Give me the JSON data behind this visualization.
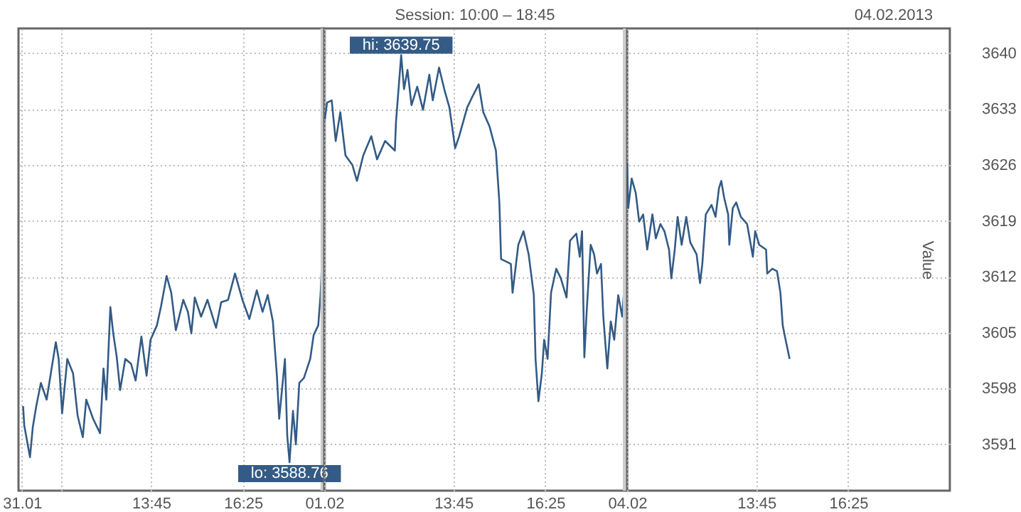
{
  "chart_data": [
    {
      "type": "line",
      "xlim": [
        "2013-01-31T09:54",
        "2013-01-31T18:45"
      ],
      "xticks": [
        {
          "value": "2013-01-31T10:00",
          "label": "31.01"
        },
        {
          "value": "2013-01-31T11:08",
          "label": null
        },
        {
          "value": "2013-01-31T13:45",
          "label": "13:45"
        },
        {
          "value": "2013-01-31T16:25",
          "label": "16:25"
        }
      ],
      "ylim": [
        3585.2,
        3643.1
      ],
      "yticks": [
        3591,
        3598,
        3605,
        3612,
        3619,
        3626,
        3633,
        3640
      ],
      "tick_labels": "x",
      "grid": true,
      "annotations": [
        {
          "text": "lo: 3588.76",
          "x": "2013-01-31T17:46",
          "y": 3588.76
        }
      ],
      "ref_lines": [
        {
          "axis": "x",
          "value": "2013-01-31T18:45",
          "label": null,
          "color": "#cccccc"
        }
      ],
      "series": [
        {
          "color": "#335b85",
          "x": [
            "2013-01-31T10:02",
            "2013-01-31T10:04",
            "2013-01-31T10:14",
            "2013-01-31T10:19",
            "2013-01-31T10:25",
            "2013-01-31T10:33",
            "2013-01-31T10:43",
            "2013-01-31T10:53",
            "2013-01-31T10:59",
            "2013-01-31T11:04",
            "2013-01-31T11:10",
            "2013-01-31T11:19",
            "2013-01-31T11:29",
            "2013-01-31T11:37",
            "2013-01-31T11:46",
            "2013-01-31T11:52",
            "2013-01-31T12:04",
            "2013-01-31T12:16",
            "2013-01-31T12:22",
            "2013-01-31T12:27",
            "2013-01-31T12:34",
            "2013-01-31T12:39",
            "2013-01-31T12:45",
            "2013-01-31T12:51",
            "2013-01-31T13:00",
            "2013-01-31T13:10",
            "2013-01-31T13:18",
            "2013-01-31T13:28",
            "2013-01-31T13:37",
            "2013-01-31T13:44",
            "2013-01-31T13:55",
            "2013-01-31T14:02",
            "2013-01-31T14:12",
            "2013-01-31T14:20",
            "2013-01-31T14:28",
            "2013-01-31T14:41",
            "2013-01-31T14:49",
            "2013-01-31T14:55",
            "2013-01-31T15:01",
            "2013-01-31T15:12",
            "2013-01-31T15:23",
            "2013-01-31T15:38",
            "2013-01-31T15:47",
            "2013-01-31T15:59",
            "2013-01-31T16:11",
            "2013-01-31T16:24",
            "2013-01-31T16:36",
            "2013-01-31T16:49",
            "2013-01-31T16:59",
            "2013-01-31T17:08",
            "2013-01-31T17:17",
            "2013-01-31T17:24",
            "2013-01-31T17:28",
            "2013-01-31T17:38",
            "2013-01-31T17:42",
            "2013-01-31T17:46",
            "2013-01-31T17:52",
            "2013-01-31T17:57",
            "2013-01-31T18:03",
            "2013-01-31T18:11",
            "2013-01-31T18:22",
            "2013-01-31T18:28",
            "2013-01-31T18:36",
            "2013-01-31T18:40",
            "2013-01-31T18:44"
          ],
          "values": [
            3595.8,
            3593.4,
            3589.4,
            3593.2,
            3595.8,
            3598.7,
            3596.6,
            3601.1,
            3603.8,
            3601.7,
            3594.9,
            3601.7,
            3599.9,
            3594.6,
            3591.9,
            3596.6,
            3594.2,
            3592.4,
            3600.5,
            3596.6,
            3608.2,
            3604.9,
            3602.0,
            3597.8,
            3601.7,
            3601.1,
            3599.0,
            3604.5,
            3599.6,
            3604.1,
            3605.9,
            3608.2,
            3612.1,
            3610.0,
            3605.3,
            3609.1,
            3607.6,
            3604.9,
            3609.4,
            3607.0,
            3609.1,
            3605.6,
            3608.8,
            3609.1,
            3612.4,
            3609.1,
            3606.7,
            3610.3,
            3607.6,
            3609.7,
            3606.4,
            3599.6,
            3594.2,
            3601.7,
            3592.1,
            3588.76,
            3595.2,
            3591.0,
            3598.7,
            3599.3,
            3601.7,
            3604.7,
            3605.9,
            3609.7,
            3616.2
          ]
        }
      ]
    },
    {
      "type": "line",
      "subtitle": "Session: 10:00 – 18:45",
      "xlim": [
        "2013-02-01T10:00",
        "2013-02-01T18:45"
      ],
      "xticks": [
        {
          "value": "2013-02-01T10:00",
          "label": "01.02"
        },
        {
          "value": "2013-02-01T13:45",
          "label": "13:45"
        },
        {
          "value": "2013-02-01T16:25",
          "label": "16:25"
        }
      ],
      "ylim": [
        3585.2,
        3643.1
      ],
      "yticks": [
        3591,
        3598,
        3605,
        3612,
        3619,
        3626,
        3633,
        3640
      ],
      "tick_labels": "x",
      "grid": true,
      "annotations": [
        {
          "text": "hi: 3639.75",
          "x": "2013-02-01T12:14",
          "y": 3639.75
        }
      ],
      "ref_lines": [
        {
          "axis": "x",
          "value": "2013-02-01T18:45",
          "label": null,
          "color": "#cccccc"
        }
      ],
      "series": [
        {
          "color": "#335b85",
          "x": [
            "2013-02-01T10:01",
            "2013-02-01T10:05",
            "2013-02-01T10:13",
            "2013-02-01T10:20",
            "2013-02-01T10:28",
            "2013-02-01T10:37",
            "2013-02-01T10:49",
            "2013-02-01T10:57",
            "2013-02-01T11:08",
            "2013-02-01T11:22",
            "2013-02-01T11:32",
            "2013-02-01T11:46",
            "2013-02-01T12:03",
            "2013-02-01T12:05",
            "2013-02-01T12:14",
            "2013-02-01T12:19",
            "2013-02-01T12:25",
            "2013-02-01T12:32",
            "2013-02-01T12:42",
            "2013-02-01T12:52",
            "2013-02-01T13:03",
            "2013-02-01T13:09",
            "2013-02-01T13:20",
            "2013-02-01T13:29",
            "2013-02-01T13:38",
            "2013-02-01T13:48",
            "2013-02-01T13:55",
            "2013-02-01T14:09",
            "2013-02-01T14:19",
            "2013-02-01T14:29",
            "2013-02-01T14:37",
            "2013-02-01T14:48",
            "2013-02-01T14:59",
            "2013-02-01T15:05",
            "2013-02-01T15:08",
            "2013-02-01T15:17",
            "2013-02-01T15:25",
            "2013-02-01T15:28",
            "2013-02-01T15:38",
            "2013-02-01T15:47",
            "2013-02-01T15:56",
            "2013-02-01T16:05",
            "2013-02-01T16:08",
            "2013-02-01T16:13",
            "2013-02-01T16:19",
            "2013-02-01T16:23",
            "2013-02-01T16:29",
            "2013-02-01T16:35",
            "2013-02-01T16:44",
            "2013-02-01T16:52",
            "2013-02-01T17:02",
            "2013-02-01T17:08",
            "2013-02-01T17:19",
            "2013-02-01T17:25",
            "2013-02-01T17:29",
            "2013-02-01T17:33",
            "2013-02-01T17:37",
            "2013-02-01T17:44",
            "2013-02-01T17:50",
            "2013-02-01T17:55",
            "2013-02-01T18:02",
            "2013-02-01T18:06",
            "2013-02-01T18:13",
            "2013-02-01T18:19",
            "2013-02-01T18:25",
            "2013-02-01T18:32",
            "2013-02-01T18:39",
            "2013-02-01T18:43"
          ],
          "values": [
            3631.7,
            3633.8,
            3634.1,
            3629.0,
            3632.6,
            3627.2,
            3626.0,
            3624.0,
            3627.2,
            3629.6,
            3626.7,
            3629.0,
            3627.8,
            3631.4,
            3639.75,
            3635.5,
            3637.9,
            3633.5,
            3635.8,
            3632.9,
            3637.3,
            3634.1,
            3638.2,
            3635.5,
            3633.2,
            3628.1,
            3629.6,
            3633.2,
            3634.7,
            3636.1,
            3632.6,
            3630.8,
            3627.8,
            3621.3,
            3614.2,
            3613.9,
            3613.6,
            3610.0,
            3616.0,
            3617.7,
            3614.8,
            3609.7,
            3601.7,
            3596.4,
            3599.9,
            3604.1,
            3601.7,
            3610.0,
            3613.0,
            3611.8,
            3609.4,
            3616.5,
            3617.4,
            3614.5,
            3617.7,
            3601.9,
            3607.6,
            3616.0,
            3614.8,
            3612.4,
            3613.6,
            3607.0,
            3600.5,
            3606.4,
            3604.1,
            3609.7,
            3607.0,
            3611.2
          ]
        }
      ]
    },
    {
      "type": "line",
      "ylabel": "Value",
      "xlim": [
        "2013-02-04T10:00",
        "2013-02-04T19:22"
      ],
      "xticks": [
        {
          "value": "2013-02-04T10:00",
          "label": "04.02"
        },
        {
          "value": "2013-02-04T13:45",
          "label": "13:45"
        },
        {
          "value": "2013-02-04T16:25",
          "label": "16:25"
        }
      ],
      "ylim": [
        3585.2,
        3643.1
      ],
      "yticks": [
        3591,
        3598,
        3605,
        3612,
        3619,
        3626,
        3633,
        3640
      ],
      "grid": true,
      "annotations": [
        "04.02.2013"
      ],
      "series": [
        {
          "color": "#335b85",
          "x": [
            "2013-02-04T10:00",
            "2013-02-04T10:02",
            "2013-02-04T10:08",
            "2013-02-04T10:15",
            "2013-02-04T10:21",
            "2013-02-04T10:28",
            "2013-02-04T10:35",
            "2013-02-04T10:44",
            "2013-02-04T10:50",
            "2013-02-04T10:58",
            "2013-02-04T11:05",
            "2013-02-04T11:13",
            "2013-02-04T11:17",
            "2013-02-04T11:23",
            "2013-02-04T11:28",
            "2013-02-04T11:35",
            "2013-02-04T11:43",
            "2013-02-04T11:50",
            "2013-02-04T12:01",
            "2013-02-04T12:07",
            "2013-02-04T12:11",
            "2013-02-04T12:17",
            "2013-02-04T12:27",
            "2013-02-04T12:34",
            "2013-02-04T12:40",
            "2013-02-04T12:44",
            "2013-02-04T12:49",
            "2013-02-04T12:56",
            "2013-02-04T12:58",
            "2013-02-04T13:04",
            "2013-02-04T13:10",
            "2013-02-04T13:18",
            "2013-02-04T13:29",
            "2013-02-04T13:39",
            "2013-02-04T13:43",
            "2013-02-04T13:50",
            "2013-02-04T14:02",
            "2013-02-04T14:04",
            "2013-02-04T14:13",
            "2013-02-04T14:21",
            "2013-02-04T14:27",
            "2013-02-04T14:31",
            "2013-02-04T14:36",
            "2013-02-04T14:43"
          ],
          "values": [
            3626.3,
            3620.6,
            3624.3,
            3622.5,
            3618.9,
            3619.8,
            3615.4,
            3619.8,
            3616.8,
            3618.6,
            3617.7,
            3615.4,
            3611.8,
            3615.4,
            3619.5,
            3616.0,
            3619.5,
            3616.3,
            3614.8,
            3611.2,
            3613.6,
            3619.8,
            3621.0,
            3619.5,
            3623.1,
            3624.0,
            3621.9,
            3619.8,
            3616.0,
            3620.6,
            3621.3,
            3619.5,
            3618.6,
            3614.5,
            3617.7,
            3616.0,
            3615.4,
            3612.4,
            3613.0,
            3612.7,
            3610.0,
            3605.9,
            3604.1,
            3601.7
          ]
        }
      ]
    }
  ]
}
